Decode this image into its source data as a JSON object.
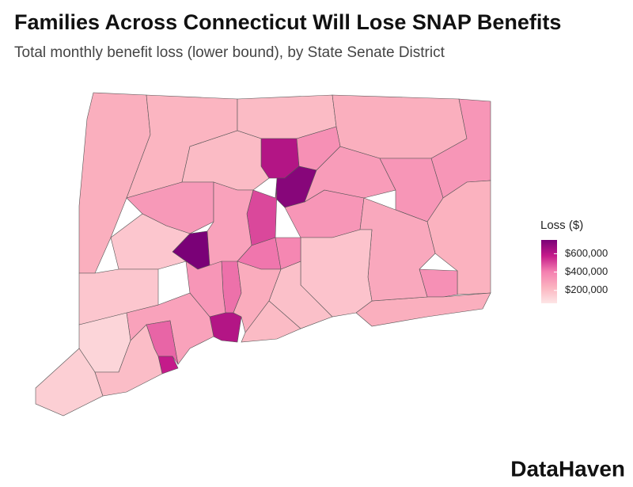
{
  "chart_data": {
    "type": "choropleth",
    "title": "Families Across Connecticut Will Lose SNAP Benefits",
    "subtitle": "Total monthly benefit loss (lower bound), by State Senate District",
    "legend_title": "Loss ($)",
    "clim": [
      60000,
      750000
    ],
    "colors": [
      "#fde6e6",
      "#fbb4c0",
      "#f47fb0",
      "#c51b8a",
      "#7a0177"
    ],
    "legend_ticks": [
      {
        "value": 200000,
        "label": "$200,000"
      },
      {
        "value": 400000,
        "label": "$400,000"
      },
      {
        "value": 600000,
        "label": "$600,000"
      }
    ],
    "values": [
      250000,
      230000,
      210000,
      250000,
      330000,
      620000,
      350000,
      720000,
      210000,
      320000,
      750000,
      170000,
      500000,
      290000,
      420000,
      330000,
      310000,
      330000,
      240000,
      350000,
      250000,
      270000,
      180000,
      190000,
      380000,
      430000,
      330000,
      620000,
      260000,
      210000,
      290000,
      450000,
      580000,
      120000,
      140000,
      200000,
      170000
    ],
    "source": "DataHaven"
  }
}
